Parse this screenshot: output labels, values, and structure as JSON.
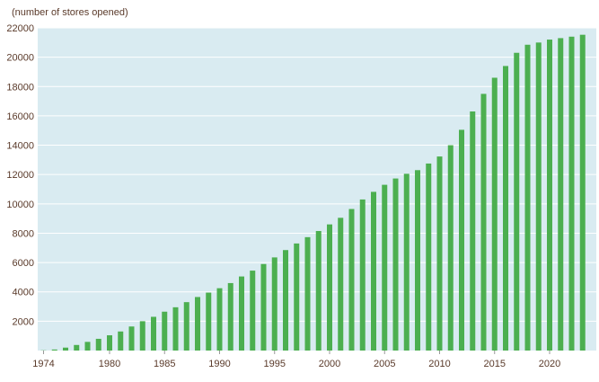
{
  "colors": {
    "plot_background": "#d9ebf1",
    "bar": "#4caf50",
    "gridline": "#ffffff",
    "axis_text": "#5a3a2a"
  },
  "chart_data": {
    "type": "bar",
    "title": "",
    "unit_label": "(number of stores opened)",
    "xlabel": "",
    "ylabel": "",
    "ylim": [
      0,
      22000
    ],
    "yticks": [
      2000,
      4000,
      6000,
      8000,
      10000,
      12000,
      14000,
      16000,
      18000,
      20000,
      22000
    ],
    "xtick_labels": [
      "1974",
      "1980",
      "1985",
      "1990",
      "1995",
      "2000",
      "2005",
      "2010",
      "2015",
      "2020"
    ],
    "grid": true,
    "legend": "none",
    "categories": [
      1974,
      1975,
      1976,
      1977,
      1978,
      1979,
      1980,
      1981,
      1982,
      1983,
      1984,
      1985,
      1986,
      1987,
      1988,
      1989,
      1990,
      1991,
      1992,
      1993,
      1994,
      1995,
      1996,
      1997,
      1998,
      1999,
      2000,
      2001,
      2002,
      2003,
      2004,
      2005,
      2006,
      2007,
      2008,
      2009,
      2010,
      2011,
      2012,
      2013,
      2014,
      2015,
      2016,
      2017,
      2018,
      2019,
      2020,
      2021,
      2022,
      2023
    ],
    "values": [
      15,
      70,
      200,
      380,
      590,
      800,
      1040,
      1300,
      1640,
      2000,
      2300,
      2650,
      2950,
      3300,
      3650,
      3950,
      4250,
      4600,
      5050,
      5450,
      5900,
      6350,
      6850,
      7300,
      7730,
      8150,
      8600,
      9050,
      9650,
      10300,
      10820,
      11300,
      11730,
      12050,
      12300,
      12750,
      13230,
      14000,
      15050,
      16300,
      17500,
      18600,
      19400,
      20300,
      20850,
      21000,
      21200,
      21300,
      21400,
      21530
    ]
  }
}
